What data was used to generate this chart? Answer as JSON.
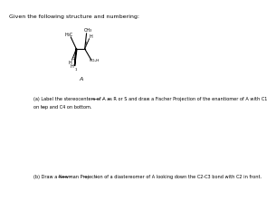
{
  "title_line": "Given the following structure and numbering:",
  "mol_label": "A",
  "question_a_line1": "(a) Label the stereocenters of A as R or S and draw a Fischer Projection of the enantiomer of A with C1",
  "question_a_line2": "on top and C4 on bottom.",
  "question_b_line1": "(b) Draw a Newman Projection of a diastereomer of A looking down the C2-C3 bond with C2 in front.",
  "bg_color": "#ffffff",
  "text_color": "#000000",
  "font_size_title": 4.5,
  "font_size_body": 3.6,
  "font_size_mol": 3.5
}
